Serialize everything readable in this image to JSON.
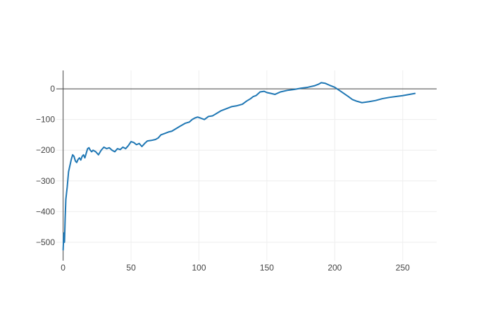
{
  "chart_data": {
    "type": "line",
    "title": "",
    "xlabel": "",
    "ylabel": "",
    "xlim": [
      -5,
      275
    ],
    "ylim": [
      -560,
      60
    ],
    "x_ticks": [
      0,
      50,
      100,
      150,
      200,
      250
    ],
    "x_tick_labels": [
      "0",
      "50",
      "100",
      "150",
      "200",
      "250"
    ],
    "y_ticks": [
      0,
      -100,
      -200,
      -300,
      -400,
      -500
    ],
    "y_tick_labels": [
      "0",
      "−100",
      "−200",
      "−300",
      "−400",
      "−500"
    ],
    "grid": true,
    "zero_lines": true,
    "line_color": "#1f77b4",
    "grid_color": "#eeeeee",
    "axis_line_color": "#444444",
    "series": [
      {
        "x": [
          0,
          0.5,
          1,
          1.5,
          2,
          2.5,
          3,
          4,
          5,
          6,
          7,
          8,
          9,
          10,
          11,
          12,
          13,
          14,
          15,
          16,
          17,
          18,
          19,
          20,
          21,
          22,
          24,
          26,
          28,
          30,
          32,
          34,
          36,
          38,
          40,
          42,
          44,
          46,
          48,
          50,
          52,
          54,
          56,
          58,
          60,
          62,
          65,
          68,
          70,
          72,
          75,
          78,
          80,
          83,
          86,
          90,
          93,
          95,
          97,
          99,
          101,
          104,
          107,
          110,
          113,
          116,
          120,
          124,
          128,
          132,
          135,
          138,
          140,
          142,
          145,
          148,
          150,
          153,
          156,
          160,
          165,
          170,
          175,
          180,
          185,
          188,
          190,
          193,
          196,
          200,
          205,
          210,
          213,
          216,
          220,
          225,
          230,
          235,
          240,
          245,
          250,
          255,
          259
        ],
        "y": [
          -525,
          -470,
          -500,
          -420,
          -360,
          -340,
          -320,
          -270,
          -250,
          -230,
          -215,
          -220,
          -235,
          -240,
          -230,
          -225,
          -232,
          -220,
          -215,
          -225,
          -210,
          -195,
          -192,
          -200,
          -205,
          -200,
          -205,
          -215,
          -200,
          -190,
          -195,
          -192,
          -200,
          -205,
          -195,
          -198,
          -190,
          -195,
          -185,
          -172,
          -175,
          -182,
          -178,
          -188,
          -178,
          -170,
          -168,
          -165,
          -160,
          -150,
          -145,
          -140,
          -138,
          -130,
          -122,
          -112,
          -108,
          -100,
          -95,
          -92,
          -95,
          -100,
          -90,
          -88,
          -80,
          -72,
          -65,
          -58,
          -55,
          -50,
          -40,
          -32,
          -25,
          -22,
          -10,
          -8,
          -12,
          -15,
          -18,
          -10,
          -5,
          -2,
          2,
          5,
          10,
          15,
          20,
          18,
          12,
          5,
          -10,
          -25,
          -35,
          -40,
          -45,
          -42,
          -38,
          -32,
          -28,
          -25,
          -22,
          -18,
          -15
        ]
      }
    ]
  }
}
